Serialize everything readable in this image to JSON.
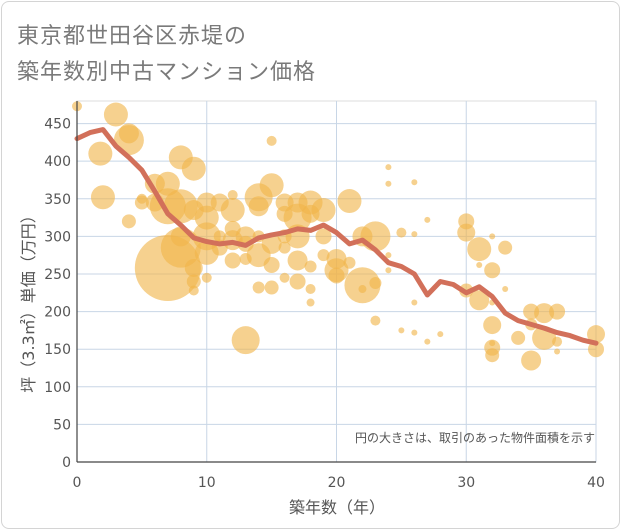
{
  "title_line1": "東京都世田谷区赤堤の",
  "title_line2": "築年数別中古マンション価格",
  "chart_data": {
    "type": "scatter",
    "xlabel": "築年数（年）",
    "ylabel": "坪（3.3㎡）単価（万円）",
    "note": "円の大きさは、取引のあった物件面積を示す",
    "xlim": [
      0,
      40
    ],
    "ylim": [
      0,
      480
    ],
    "xticks": [
      0,
      10,
      20,
      30,
      40
    ],
    "yticks": [
      0,
      50,
      100,
      150,
      200,
      250,
      300,
      350,
      400,
      450
    ],
    "grid": true,
    "bubble_color": "#f0b54a",
    "line_color": "#d2705a",
    "line": [
      {
        "x": 0,
        "y": 430
      },
      {
        "x": 1,
        "y": 438
      },
      {
        "x": 2,
        "y": 442
      },
      {
        "x": 3,
        "y": 420
      },
      {
        "x": 4,
        "y": 405
      },
      {
        "x": 5,
        "y": 388
      },
      {
        "x": 6,
        "y": 360
      },
      {
        "x": 7,
        "y": 330
      },
      {
        "x": 8,
        "y": 315
      },
      {
        "x": 9,
        "y": 298
      },
      {
        "x": 10,
        "y": 293
      },
      {
        "x": 11,
        "y": 290
      },
      {
        "x": 12,
        "y": 292
      },
      {
        "x": 13,
        "y": 288
      },
      {
        "x": 14,
        "y": 298
      },
      {
        "x": 15,
        "y": 302
      },
      {
        "x": 16,
        "y": 305
      },
      {
        "x": 17,
        "y": 310
      },
      {
        "x": 18,
        "y": 308
      },
      {
        "x": 19,
        "y": 315
      },
      {
        "x": 20,
        "y": 305
      },
      {
        "x": 21,
        "y": 290
      },
      {
        "x": 22,
        "y": 295
      },
      {
        "x": 23,
        "y": 282
      },
      {
        "x": 24,
        "y": 265
      },
      {
        "x": 25,
        "y": 260
      },
      {
        "x": 26,
        "y": 250
      },
      {
        "x": 27,
        "y": 222
      },
      {
        "x": 28,
        "y": 240
      },
      {
        "x": 29,
        "y": 236
      },
      {
        "x": 30,
        "y": 225
      },
      {
        "x": 31,
        "y": 233
      },
      {
        "x": 32,
        "y": 220
      },
      {
        "x": 33,
        "y": 198
      },
      {
        "x": 34,
        "y": 188
      },
      {
        "x": 35,
        "y": 183
      },
      {
        "x": 36,
        "y": 178
      },
      {
        "x": 37,
        "y": 172
      },
      {
        "x": 38,
        "y": 168
      },
      {
        "x": 39,
        "y": 162
      },
      {
        "x": 40,
        "y": 158
      }
    ],
    "bubbles": [
      {
        "x": 0,
        "y": 473,
        "r": 5
      },
      {
        "x": 1.8,
        "y": 410,
        "r": 12
      },
      {
        "x": 2,
        "y": 352,
        "r": 12
      },
      {
        "x": 3,
        "y": 462,
        "r": 12
      },
      {
        "x": 4,
        "y": 428,
        "r": 15
      },
      {
        "x": 4,
        "y": 437,
        "r": 10
      },
      {
        "x": 4,
        "y": 320,
        "r": 7
      },
      {
        "x": 5,
        "y": 345,
        "r": 7
      },
      {
        "x": 5,
        "y": 350,
        "r": 5
      },
      {
        "x": 6,
        "y": 370,
        "r": 10
      },
      {
        "x": 6,
        "y": 345,
        "r": 9
      },
      {
        "x": 7,
        "y": 258,
        "r": 33
      },
      {
        "x": 7,
        "y": 340,
        "r": 18
      },
      {
        "x": 7,
        "y": 370,
        "r": 12
      },
      {
        "x": 8,
        "y": 405,
        "r": 12
      },
      {
        "x": 8,
        "y": 340,
        "r": 17
      },
      {
        "x": 8,
        "y": 285,
        "r": 20
      },
      {
        "x": 8,
        "y": 300,
        "r": 10
      },
      {
        "x": 9,
        "y": 390,
        "r": 12
      },
      {
        "x": 9,
        "y": 335,
        "r": 10
      },
      {
        "x": 9,
        "y": 258,
        "r": 9
      },
      {
        "x": 9,
        "y": 240,
        "r": 7
      },
      {
        "x": 9,
        "y": 228,
        "r": 5
      },
      {
        "x": 10,
        "y": 345,
        "r": 10
      },
      {
        "x": 10,
        "y": 325,
        "r": 12
      },
      {
        "x": 10,
        "y": 300,
        "r": 14
      },
      {
        "x": 10,
        "y": 278,
        "r": 12
      },
      {
        "x": 10,
        "y": 245,
        "r": 5
      },
      {
        "x": 11,
        "y": 345,
        "r": 9
      },
      {
        "x": 11,
        "y": 300,
        "r": 6
      },
      {
        "x": 11,
        "y": 285,
        "r": 8
      },
      {
        "x": 12,
        "y": 355,
        "r": 5
      },
      {
        "x": 12,
        "y": 335,
        "r": 12
      },
      {
        "x": 12,
        "y": 310,
        "r": 8
      },
      {
        "x": 12,
        "y": 295,
        "r": 10
      },
      {
        "x": 12,
        "y": 268,
        "r": 8
      },
      {
        "x": 13,
        "y": 162,
        "r": 14
      },
      {
        "x": 13,
        "y": 300,
        "r": 10
      },
      {
        "x": 13,
        "y": 290,
        "r": 8
      },
      {
        "x": 13,
        "y": 270,
        "r": 6
      },
      {
        "x": 14,
        "y": 352,
        "r": 14
      },
      {
        "x": 14,
        "y": 340,
        "r": 10
      },
      {
        "x": 14,
        "y": 300,
        "r": 6
      },
      {
        "x": 14,
        "y": 275,
        "r": 12
      },
      {
        "x": 14,
        "y": 232,
        "r": 6
      },
      {
        "x": 15,
        "y": 427,
        "r": 5
      },
      {
        "x": 15,
        "y": 368,
        "r": 12
      },
      {
        "x": 15,
        "y": 290,
        "r": 10
      },
      {
        "x": 15,
        "y": 262,
        "r": 8
      },
      {
        "x": 15,
        "y": 232,
        "r": 7
      },
      {
        "x": 16,
        "y": 345,
        "r": 9
      },
      {
        "x": 16,
        "y": 330,
        "r": 8
      },
      {
        "x": 16,
        "y": 300,
        "r": 7
      },
      {
        "x": 16,
        "y": 285,
        "r": 6
      },
      {
        "x": 16,
        "y": 245,
        "r": 5
      },
      {
        "x": 17,
        "y": 345,
        "r": 10
      },
      {
        "x": 17,
        "y": 325,
        "r": 14
      },
      {
        "x": 17,
        "y": 300,
        "r": 12
      },
      {
        "x": 17,
        "y": 268,
        "r": 10
      },
      {
        "x": 17,
        "y": 240,
        "r": 8
      },
      {
        "x": 18,
        "y": 345,
        "r": 12
      },
      {
        "x": 18,
        "y": 330,
        "r": 9
      },
      {
        "x": 18,
        "y": 260,
        "r": 6
      },
      {
        "x": 18,
        "y": 230,
        "r": 5
      },
      {
        "x": 18,
        "y": 212,
        "r": 4
      },
      {
        "x": 19,
        "y": 335,
        "r": 12
      },
      {
        "x": 19,
        "y": 300,
        "r": 8
      },
      {
        "x": 19,
        "y": 275,
        "r": 6
      },
      {
        "x": 20,
        "y": 270,
        "r": 10
      },
      {
        "x": 20,
        "y": 255,
        "r": 12
      },
      {
        "x": 20,
        "y": 248,
        "r": 8
      },
      {
        "x": 21,
        "y": 347,
        "r": 12
      },
      {
        "x": 21,
        "y": 265,
        "r": 6
      },
      {
        "x": 22,
        "y": 235,
        "r": 18
      },
      {
        "x": 22,
        "y": 300,
        "r": 10
      },
      {
        "x": 22,
        "y": 230,
        "r": 4
      },
      {
        "x": 23,
        "y": 300,
        "r": 15
      },
      {
        "x": 23,
        "y": 238,
        "r": 6
      },
      {
        "x": 23,
        "y": 188,
        "r": 5
      },
      {
        "x": 24,
        "y": 392,
        "r": 3
      },
      {
        "x": 24,
        "y": 370,
        "r": 3
      },
      {
        "x": 24,
        "y": 275,
        "r": 3
      },
      {
        "x": 24,
        "y": 255,
        "r": 3
      },
      {
        "x": 25,
        "y": 305,
        "r": 5
      },
      {
        "x": 25,
        "y": 175,
        "r": 3
      },
      {
        "x": 26,
        "y": 372,
        "r": 3
      },
      {
        "x": 26,
        "y": 303,
        "r": 3
      },
      {
        "x": 26,
        "y": 212,
        "r": 3
      },
      {
        "x": 26,
        "y": 172,
        "r": 3
      },
      {
        "x": 27,
        "y": 322,
        "r": 3
      },
      {
        "x": 27,
        "y": 160,
        "r": 3
      },
      {
        "x": 28,
        "y": 170,
        "r": 3
      },
      {
        "x": 30,
        "y": 320,
        "r": 8
      },
      {
        "x": 30,
        "y": 305,
        "r": 9
      },
      {
        "x": 30,
        "y": 228,
        "r": 7
      },
      {
        "x": 31,
        "y": 283,
        "r": 12
      },
      {
        "x": 31,
        "y": 215,
        "r": 10
      },
      {
        "x": 31,
        "y": 262,
        "r": 3
      },
      {
        "x": 32,
        "y": 300,
        "r": 3
      },
      {
        "x": 32,
        "y": 255,
        "r": 8
      },
      {
        "x": 32,
        "y": 212,
        "r": 3
      },
      {
        "x": 32,
        "y": 182,
        "r": 9
      },
      {
        "x": 32,
        "y": 152,
        "r": 8
      },
      {
        "x": 32,
        "y": 142,
        "r": 7
      },
      {
        "x": 32,
        "y": 158,
        "r": 3
      },
      {
        "x": 33,
        "y": 285,
        "r": 7
      },
      {
        "x": 33,
        "y": 230,
        "r": 3
      },
      {
        "x": 34,
        "y": 165,
        "r": 7
      },
      {
        "x": 35,
        "y": 200,
        "r": 8
      },
      {
        "x": 35,
        "y": 183,
        "r": 6
      },
      {
        "x": 35,
        "y": 135,
        "r": 10
      },
      {
        "x": 36,
        "y": 198,
        "r": 10
      },
      {
        "x": 36,
        "y": 165,
        "r": 12
      },
      {
        "x": 37,
        "y": 200,
        "r": 8
      },
      {
        "x": 37,
        "y": 160,
        "r": 5
      },
      {
        "x": 37,
        "y": 147,
        "r": 3
      },
      {
        "x": 40,
        "y": 170,
        "r": 9
      },
      {
        "x": 40,
        "y": 150,
        "r": 8
      }
    ]
  }
}
